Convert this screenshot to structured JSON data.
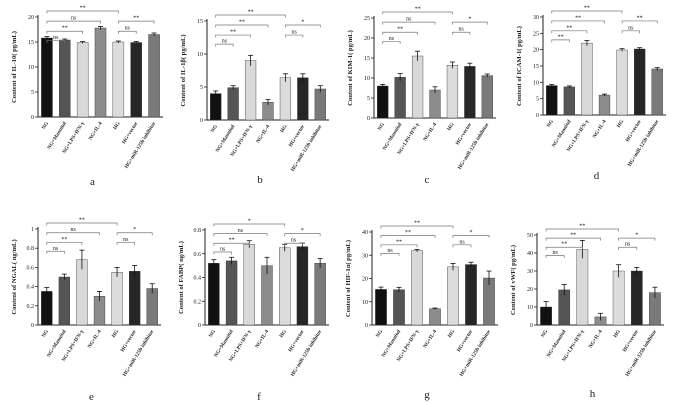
{
  "chart_data": [
    {
      "type": "bar",
      "letter": "a",
      "ylabel": "Content of IL-10( pg/mL)",
      "categories": [
        "NG",
        "NG+Mannitol",
        "NG+LPS+IFN-γ",
        "NG+IL-4",
        "HG",
        "HG+vector",
        "HG+miR-125b inhibitor"
      ],
      "values": [
        15.8,
        15.4,
        14.9,
        17.8,
        15.0,
        14.9,
        16.5
      ],
      "errors": [
        0.3,
        0.2,
        0.2,
        0.3,
        0.2,
        0.2,
        0.3
      ],
      "ylim": [
        0,
        20
      ],
      "yticks": [
        0,
        5,
        10,
        15,
        20
      ],
      "brackets": [
        {
          "a": 0,
          "b": 4,
          "label": "**"
        },
        {
          "a": 0,
          "b": 3,
          "label": "ns"
        },
        {
          "a": 0,
          "b": 2,
          "label": "**"
        },
        {
          "a": 0,
          "b": 1,
          "label": "ns"
        },
        {
          "a": 4,
          "b": 6,
          "label": "**"
        },
        {
          "a": 4,
          "b": 5,
          "label": "ns"
        }
      ]
    },
    {
      "type": "bar",
      "letter": "b",
      "ylabel": "Content of IL-1β( pg/mL)",
      "categories": [
        "NG",
        "NG+Mannitol",
        "NG+LPS+IFN-γ",
        "NG+IL-4",
        "HG",
        "HG+vector",
        "HG+miR-125b inhibitor"
      ],
      "values": [
        4.0,
        4.9,
        9.0,
        2.7,
        6.4,
        6.4,
        4.7
      ],
      "errors": [
        0.4,
        0.3,
        0.8,
        0.4,
        0.6,
        0.6,
        0.5
      ],
      "ylim": [
        0,
        15
      ],
      "yticks": [
        0,
        5,
        10,
        15
      ],
      "brackets": [
        {
          "a": 0,
          "b": 4,
          "label": "**"
        },
        {
          "a": 0,
          "b": 3,
          "label": "**"
        },
        {
          "a": 0,
          "b": 2,
          "label": "**"
        },
        {
          "a": 0,
          "b": 1,
          "label": "ns"
        },
        {
          "a": 4,
          "b": 6,
          "label": "*"
        },
        {
          "a": 4,
          "b": 5,
          "label": "ns"
        }
      ]
    },
    {
      "type": "bar",
      "letter": "c",
      "ylabel": "Content of KIM-1( pg/mL)",
      "categories": [
        "NG",
        "NG+Mannitol",
        "NG+LPS+IFN-γ",
        "NG+IL-4",
        "HG",
        "HG+vector",
        "HG+miR-125b inhibitor"
      ],
      "values": [
        8.0,
        10.2,
        15.5,
        7.0,
        13.2,
        12.9,
        10.6
      ],
      "errors": [
        0.4,
        0.9,
        1.2,
        0.8,
        0.8,
        0.8,
        0.4
      ],
      "ylim": [
        0,
        25
      ],
      "yticks": [
        0,
        5,
        10,
        15,
        20,
        25
      ],
      "brackets": [
        {
          "a": 0,
          "b": 4,
          "label": "**"
        },
        {
          "a": 0,
          "b": 3,
          "label": "ns"
        },
        {
          "a": 0,
          "b": 2,
          "label": "**"
        },
        {
          "a": 0,
          "b": 1,
          "label": "ns"
        },
        {
          "a": 4,
          "b": 6,
          "label": "*"
        },
        {
          "a": 4,
          "b": 5,
          "label": "ns"
        }
      ]
    },
    {
      "type": "bar",
      "letter": "d",
      "ylabel": "Content of ICAM-1( pg/mL)",
      "categories": [
        "NG",
        "NG+Mannitol",
        "NG+LPS+IFN-γ",
        "NG+IL-4",
        "HG",
        "HG+vector",
        "HG+miR-125b inhibitor"
      ],
      "values": [
        9.0,
        8.6,
        22.0,
        6.1,
        19.9,
        20.2,
        14.1
      ],
      "errors": [
        0.3,
        0.3,
        0.8,
        0.3,
        0.4,
        0.4,
        0.4
      ],
      "ylim": [
        0,
        30
      ],
      "yticks": [
        0,
        5,
        10,
        15,
        20,
        25,
        30
      ],
      "brackets": [
        {
          "a": 0,
          "b": 4,
          "label": "**"
        },
        {
          "a": 0,
          "b": 3,
          "label": "**"
        },
        {
          "a": 0,
          "b": 2,
          "label": "**"
        },
        {
          "a": 0,
          "b": 1,
          "label": "**"
        },
        {
          "a": 4,
          "b": 6,
          "label": "**"
        },
        {
          "a": 4,
          "b": 5,
          "label": "ns"
        }
      ]
    },
    {
      "type": "bar",
      "letter": "e",
      "ylabel": "Content of NGAL( ng/mL)",
      "categories": [
        "NG",
        "NG+Mannitol",
        "NG+LPS+IFN-γ",
        "NG+IL-4",
        "HG",
        "HG+vector",
        "HG+miR-125b inhibitor"
      ],
      "values": [
        0.35,
        0.5,
        0.68,
        0.3,
        0.55,
        0.56,
        0.38
      ],
      "errors": [
        0.04,
        0.03,
        0.1,
        0.05,
        0.05,
        0.06,
        0.05
      ],
      "ylim": [
        0,
        1.0
      ],
      "yticks": [
        0,
        0.2,
        0.4,
        0.6,
        0.8,
        1.0
      ],
      "brackets": [
        {
          "a": 0,
          "b": 4,
          "label": "**"
        },
        {
          "a": 0,
          "b": 3,
          "label": "ns"
        },
        {
          "a": 0,
          "b": 2,
          "label": "**"
        },
        {
          "a": 0,
          "b": 1,
          "label": "ns"
        },
        {
          "a": 4,
          "b": 6,
          "label": "*"
        },
        {
          "a": 4,
          "b": 5,
          "label": "ns"
        }
      ]
    },
    {
      "type": "bar",
      "letter": "f",
      "ylabel": "Content of FABP( ng/mL)",
      "categories": [
        "NG",
        "NG+Mannitol",
        "NG+LPS+IFN-γ",
        "NG+IL-4",
        "HG",
        "HG+vector",
        "HG+miR-125b inhibitor"
      ],
      "values": [
        0.52,
        0.54,
        0.68,
        0.5,
        0.65,
        0.66,
        0.52
      ],
      "errors": [
        0.03,
        0.03,
        0.03,
        0.07,
        0.03,
        0.03,
        0.04
      ],
      "ylim": [
        0,
        0.8
      ],
      "yticks": [
        0,
        0.2,
        0.4,
        0.6,
        0.8
      ],
      "brackets": [
        {
          "a": 0,
          "b": 4,
          "label": "*"
        },
        {
          "a": 0,
          "b": 3,
          "label": "ns"
        },
        {
          "a": 0,
          "b": 2,
          "label": "**"
        },
        {
          "a": 0,
          "b": 1,
          "label": "ns"
        },
        {
          "a": 4,
          "b": 6,
          "label": "*"
        },
        {
          "a": 4,
          "b": 5,
          "label": "ns"
        }
      ]
    },
    {
      "type": "bar",
      "letter": "g",
      "ylabel": "Content of HIF-1α( pg/mL)",
      "categories": [
        "NG",
        "NG+Mannitol",
        "NG+LPS+IFN-γ",
        "NG+IL-4",
        "HG",
        "HG+vector",
        "HG+miR-125b inhibitor"
      ],
      "values": [
        15.3,
        15.2,
        32.0,
        7.0,
        25.0,
        26.0,
        20.2
      ],
      "errors": [
        1.0,
        1.0,
        0.5,
        0.3,
        1.5,
        1.0,
        3.0
      ],
      "ylim": [
        0,
        40
      ],
      "yticks": [
        0,
        10,
        20,
        30,
        40
      ],
      "brackets": [
        {
          "a": 0,
          "b": 4,
          "label": "**"
        },
        {
          "a": 0,
          "b": 3,
          "label": "**"
        },
        {
          "a": 0,
          "b": 2,
          "label": "**"
        },
        {
          "a": 0,
          "b": 1,
          "label": "ns"
        },
        {
          "a": 4,
          "b": 6,
          "label": "*"
        },
        {
          "a": 4,
          "b": 5,
          "label": "ns"
        }
      ]
    },
    {
      "type": "bar",
      "letter": "h",
      "ylabel": "Content of vWF( pg/mL)",
      "categories": [
        "NG",
        "NG+Mannitol",
        "NG+LPS+IFN-γ",
        "NG+IL-4",
        "HG",
        "HG+vector",
        "HG+miR-125b inhibitor"
      ],
      "values": [
        10.0,
        19.5,
        42.0,
        4.5,
        30.0,
        30.0,
        18.0
      ],
      "errors": [
        3.0,
        3.0,
        5.0,
        2.0,
        3.5,
        2.0,
        3.0
      ],
      "ylim": [
        0,
        50
      ],
      "yticks": [
        0,
        10,
        20,
        30,
        40,
        50
      ],
      "brackets": [
        {
          "a": 0,
          "b": 4,
          "label": "**"
        },
        {
          "a": 0,
          "b": 3,
          "label": "**"
        },
        {
          "a": 0,
          "b": 2,
          "label": "**"
        },
        {
          "a": 0,
          "b": 1,
          "label": "ns"
        },
        {
          "a": 4,
          "b": 6,
          "label": "*"
        },
        {
          "a": 4,
          "b": 5,
          "label": "ns"
        }
      ]
    }
  ],
  "colors": {
    "bars": [
      "#111111",
      "#555555",
      "#d9d9d9",
      "#8c8c8c",
      "#dcdcdc",
      "#262626",
      "#7a7a7a"
    ],
    "axis": "#222222",
    "bracket": "#777777"
  }
}
